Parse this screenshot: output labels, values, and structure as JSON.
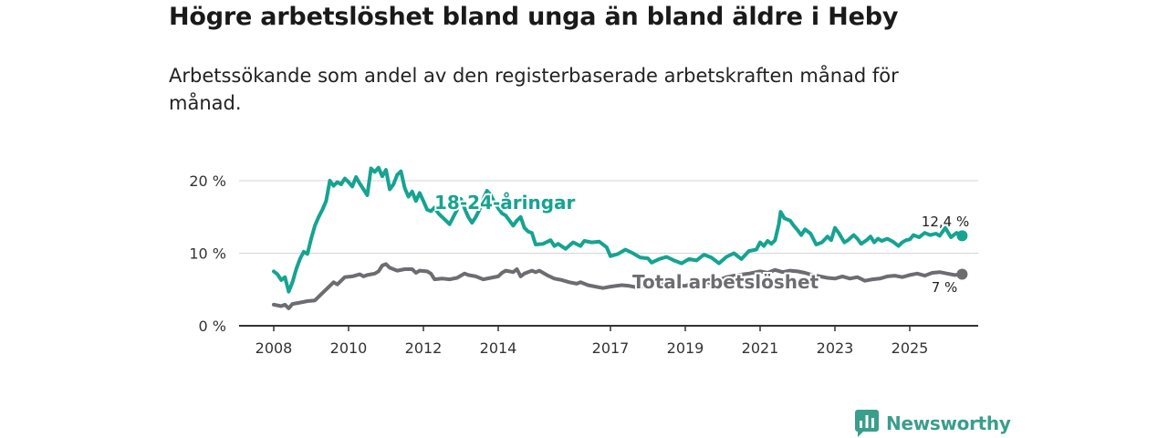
{
  "title": "Högre arbetslöshet bland unga än bland äldre i Heby",
  "subtitle": "Arbetssökande som andel av den registerbaserade arbetskraften månad för månad.",
  "brand": {
    "name": "Newsworthy",
    "color": "#3a9e8c"
  },
  "chart_data": {
    "type": "line",
    "title": "Högre arbetslöshet bland unga än bland äldre i Heby",
    "subtitle": "Arbetssökande som andel av den registerbaserade arbetskraften månad för månad.",
    "xlabel": "",
    "ylabel": "",
    "xlim": [
      2007.8,
      2026.8
    ],
    "ylim": [
      0,
      22
    ],
    "grid": true,
    "legend": "inline labels",
    "y_ticks": [
      {
        "value": 0,
        "label": "0 %"
      },
      {
        "value": 10,
        "label": "10 %"
      },
      {
        "value": 20,
        "label": "20 %"
      }
    ],
    "x_ticks": [
      {
        "value": 2008,
        "label": "2008"
      },
      {
        "value": 2010,
        "label": "2010"
      },
      {
        "value": 2012,
        "label": "2012"
      },
      {
        "value": 2014,
        "label": "2014"
      },
      {
        "value": 2017,
        "label": "2017"
      },
      {
        "value": 2019,
        "label": "2019"
      },
      {
        "value": 2021,
        "label": "2021"
      },
      {
        "value": 2023,
        "label": "2023"
      },
      {
        "value": 2025,
        "label": "2025"
      }
    ],
    "series": [
      {
        "name": "18–24-åringar",
        "label": "18-24-åringar",
        "color": "#16a391",
        "last_label": "12,4 %",
        "points": [
          [
            2008.0,
            7.5
          ],
          [
            2008.1,
            7.1
          ],
          [
            2008.2,
            6.3
          ],
          [
            2008.3,
            6.7
          ],
          [
            2008.4,
            4.7
          ],
          [
            2008.5,
            6.0
          ],
          [
            2008.6,
            7.8
          ],
          [
            2008.7,
            9.2
          ],
          [
            2008.8,
            10.2
          ],
          [
            2008.9,
            9.9
          ],
          [
            2009.0,
            12.0
          ],
          [
            2009.1,
            13.8
          ],
          [
            2009.2,
            15.0
          ],
          [
            2009.3,
            16.0
          ],
          [
            2009.4,
            17.2
          ],
          [
            2009.5,
            20.0
          ],
          [
            2009.6,
            19.3
          ],
          [
            2009.7,
            19.8
          ],
          [
            2009.8,
            19.5
          ],
          [
            2009.9,
            20.3
          ],
          [
            2010.0,
            19.8
          ],
          [
            2010.1,
            19.2
          ],
          [
            2010.2,
            20.5
          ],
          [
            2010.3,
            19.6
          ],
          [
            2010.4,
            18.8
          ],
          [
            2010.5,
            18.0
          ],
          [
            2010.6,
            21.7
          ],
          [
            2010.7,
            21.2
          ],
          [
            2010.8,
            21.8
          ],
          [
            2010.9,
            20.6
          ],
          [
            2011.0,
            21.5
          ],
          [
            2011.1,
            18.8
          ],
          [
            2011.2,
            19.5
          ],
          [
            2011.3,
            20.8
          ],
          [
            2011.4,
            21.3
          ],
          [
            2011.5,
            19.0
          ],
          [
            2011.6,
            17.8
          ],
          [
            2011.7,
            18.5
          ],
          [
            2011.8,
            17.2
          ],
          [
            2011.9,
            18.3
          ],
          [
            2012.0,
            17.2
          ],
          [
            2012.1,
            16.0
          ],
          [
            2012.2,
            15.8
          ],
          [
            2012.3,
            16.3
          ],
          [
            2012.4,
            15.5
          ],
          [
            2012.5,
            15.0
          ],
          [
            2012.6,
            14.5
          ],
          [
            2012.7,
            14.0
          ],
          [
            2012.8,
            15.0
          ],
          [
            2012.9,
            16.0
          ],
          [
            2013.0,
            17.5
          ],
          [
            2013.1,
            16.2
          ],
          [
            2013.2,
            15.0
          ],
          [
            2013.3,
            14.2
          ],
          [
            2013.4,
            15.0
          ],
          [
            2013.5,
            16.0
          ],
          [
            2013.6,
            17.5
          ],
          [
            2013.7,
            18.6
          ],
          [
            2013.8,
            18.0
          ],
          [
            2013.9,
            17.0
          ],
          [
            2014.0,
            16.2
          ],
          [
            2014.1,
            15.5
          ],
          [
            2014.2,
            15.2
          ],
          [
            2014.3,
            14.5
          ],
          [
            2014.4,
            13.8
          ],
          [
            2014.5,
            14.5
          ],
          [
            2014.6,
            15.0
          ],
          [
            2014.7,
            13.5
          ],
          [
            2014.8,
            13.0
          ],
          [
            2014.9,
            12.8
          ],
          [
            2015.0,
            11.2
          ],
          [
            2015.2,
            11.3
          ],
          [
            2015.4,
            11.8
          ],
          [
            2015.5,
            11.0
          ],
          [
            2015.6,
            11.3
          ],
          [
            2015.8,
            10.6
          ],
          [
            2016.0,
            11.5
          ],
          [
            2016.2,
            11.0
          ],
          [
            2016.3,
            11.7
          ],
          [
            2016.5,
            11.5
          ],
          [
            2016.7,
            11.6
          ],
          [
            2016.9,
            10.8
          ],
          [
            2017.0,
            9.6
          ],
          [
            2017.2,
            9.9
          ],
          [
            2017.4,
            10.5
          ],
          [
            2017.6,
            10.0
          ],
          [
            2017.8,
            9.4
          ],
          [
            2018.0,
            9.3
          ],
          [
            2018.1,
            8.7
          ],
          [
            2018.3,
            9.2
          ],
          [
            2018.5,
            9.5
          ],
          [
            2018.7,
            9.0
          ],
          [
            2018.9,
            8.6
          ],
          [
            2019.1,
            9.2
          ],
          [
            2019.3,
            9.0
          ],
          [
            2019.5,
            9.8
          ],
          [
            2019.7,
            9.4
          ],
          [
            2019.9,
            8.6
          ],
          [
            2020.1,
            9.5
          ],
          [
            2020.3,
            10.0
          ],
          [
            2020.5,
            9.2
          ],
          [
            2020.7,
            10.3
          ],
          [
            2020.9,
            10.5
          ],
          [
            2021.0,
            11.5
          ],
          [
            2021.1,
            11.0
          ],
          [
            2021.2,
            11.7
          ],
          [
            2021.3,
            11.3
          ],
          [
            2021.4,
            11.8
          ],
          [
            2021.5,
            14.0
          ],
          [
            2021.55,
            15.7
          ],
          [
            2021.65,
            14.8
          ],
          [
            2021.8,
            14.5
          ],
          [
            2021.9,
            13.8
          ],
          [
            2022.0,
            13.2
          ],
          [
            2022.1,
            12.5
          ],
          [
            2022.2,
            13.3
          ],
          [
            2022.35,
            12.7
          ],
          [
            2022.5,
            11.2
          ],
          [
            2022.65,
            11.5
          ],
          [
            2022.8,
            12.3
          ],
          [
            2022.9,
            11.8
          ],
          [
            2023.0,
            13.5
          ],
          [
            2023.1,
            12.8
          ],
          [
            2023.25,
            11.5
          ],
          [
            2023.35,
            11.8
          ],
          [
            2023.5,
            12.5
          ],
          [
            2023.6,
            12.0
          ],
          [
            2023.7,
            11.3
          ],
          [
            2023.85,
            11.8
          ],
          [
            2023.95,
            12.3
          ],
          [
            2024.05,
            11.5
          ],
          [
            2024.15,
            12.0
          ],
          [
            2024.25,
            11.7
          ],
          [
            2024.4,
            12.0
          ],
          [
            2024.55,
            11.6
          ],
          [
            2024.7,
            11.0
          ],
          [
            2024.8,
            11.5
          ],
          [
            2024.9,
            11.8
          ],
          [
            2025.0,
            11.9
          ],
          [
            2025.1,
            12.5
          ],
          [
            2025.25,
            12.2
          ],
          [
            2025.4,
            12.8
          ],
          [
            2025.55,
            12.5
          ],
          [
            2025.7,
            12.7
          ],
          [
            2025.8,
            12.4
          ],
          [
            2025.95,
            13.5
          ],
          [
            2026.1,
            12.2
          ],
          [
            2026.25,
            12.8
          ],
          [
            2026.4,
            12.4
          ]
        ]
      },
      {
        "name": "Total arbetslöshet",
        "label": "Total arbetslöshet",
        "color": "#6d6c70",
        "last_label": "7 %",
        "points": [
          [
            2008.0,
            2.9
          ],
          [
            2008.2,
            2.7
          ],
          [
            2008.3,
            2.9
          ],
          [
            2008.4,
            2.4
          ],
          [
            2008.5,
            3.0
          ],
          [
            2008.7,
            3.2
          ],
          [
            2008.9,
            3.4
          ],
          [
            2009.1,
            3.5
          ],
          [
            2009.3,
            4.5
          ],
          [
            2009.5,
            5.5
          ],
          [
            2009.6,
            6.0
          ],
          [
            2009.7,
            5.7
          ],
          [
            2009.9,
            6.7
          ],
          [
            2010.1,
            6.8
          ],
          [
            2010.3,
            7.1
          ],
          [
            2010.4,
            6.8
          ],
          [
            2010.5,
            7.0
          ],
          [
            2010.7,
            7.2
          ],
          [
            2010.8,
            7.5
          ],
          [
            2010.9,
            8.3
          ],
          [
            2011.0,
            8.5
          ],
          [
            2011.1,
            8.0
          ],
          [
            2011.3,
            7.6
          ],
          [
            2011.5,
            7.8
          ],
          [
            2011.7,
            7.8
          ],
          [
            2011.8,
            7.3
          ],
          [
            2011.9,
            7.6
          ],
          [
            2012.1,
            7.5
          ],
          [
            2012.2,
            7.2
          ],
          [
            2012.3,
            6.4
          ],
          [
            2012.5,
            6.5
          ],
          [
            2012.7,
            6.4
          ],
          [
            2012.9,
            6.6
          ],
          [
            2013.0,
            6.9
          ],
          [
            2013.1,
            7.2
          ],
          [
            2013.2,
            7.0
          ],
          [
            2013.4,
            6.8
          ],
          [
            2013.6,
            6.4
          ],
          [
            2013.8,
            6.6
          ],
          [
            2014.0,
            6.8
          ],
          [
            2014.1,
            7.3
          ],
          [
            2014.2,
            7.6
          ],
          [
            2014.4,
            7.4
          ],
          [
            2014.5,
            7.8
          ],
          [
            2014.6,
            6.8
          ],
          [
            2014.7,
            7.2
          ],
          [
            2014.9,
            7.6
          ],
          [
            2015.0,
            7.4
          ],
          [
            2015.1,
            7.6
          ],
          [
            2015.3,
            7.0
          ],
          [
            2015.5,
            6.5
          ],
          [
            2015.7,
            6.3
          ],
          [
            2015.9,
            6.0
          ],
          [
            2016.1,
            5.8
          ],
          [
            2016.2,
            6.0
          ],
          [
            2016.4,
            5.6
          ],
          [
            2016.6,
            5.4
          ],
          [
            2016.8,
            5.2
          ],
          [
            2017.0,
            5.4
          ],
          [
            2017.3,
            5.6
          ],
          [
            2017.5,
            5.5
          ],
          [
            2017.7,
            5.3
          ],
          [
            2017.9,
            5.5
          ],
          [
            2018.2,
            5.6
          ],
          [
            2018.5,
            5.8
          ],
          [
            2018.7,
            5.5
          ],
          [
            2019.0,
            5.5
          ],
          [
            2019.2,
            5.8
          ],
          [
            2019.5,
            6.0
          ],
          [
            2019.7,
            5.9
          ],
          [
            2019.9,
            6.3
          ],
          [
            2020.1,
            6.7
          ],
          [
            2020.4,
            7.0
          ],
          [
            2020.7,
            7.2
          ],
          [
            2021.0,
            7.5
          ],
          [
            2021.2,
            7.3
          ],
          [
            2021.4,
            7.7
          ],
          [
            2021.6,
            7.4
          ],
          [
            2021.8,
            7.6
          ],
          [
            2022.0,
            7.5
          ],
          [
            2022.2,
            7.3
          ],
          [
            2022.4,
            7.0
          ],
          [
            2022.6,
            6.8
          ],
          [
            2022.8,
            6.6
          ],
          [
            2023.0,
            6.5
          ],
          [
            2023.2,
            6.8
          ],
          [
            2023.4,
            6.5
          ],
          [
            2023.6,
            6.7
          ],
          [
            2023.8,
            6.2
          ],
          [
            2024.0,
            6.4
          ],
          [
            2024.2,
            6.5
          ],
          [
            2024.4,
            6.8
          ],
          [
            2024.6,
            6.9
          ],
          [
            2024.8,
            6.7
          ],
          [
            2025.0,
            7.0
          ],
          [
            2025.2,
            7.2
          ],
          [
            2025.4,
            6.9
          ],
          [
            2025.6,
            7.3
          ],
          [
            2025.8,
            7.4
          ],
          [
            2026.0,
            7.2
          ],
          [
            2026.2,
            7.0
          ],
          [
            2026.4,
            7.1
          ]
        ]
      }
    ]
  }
}
